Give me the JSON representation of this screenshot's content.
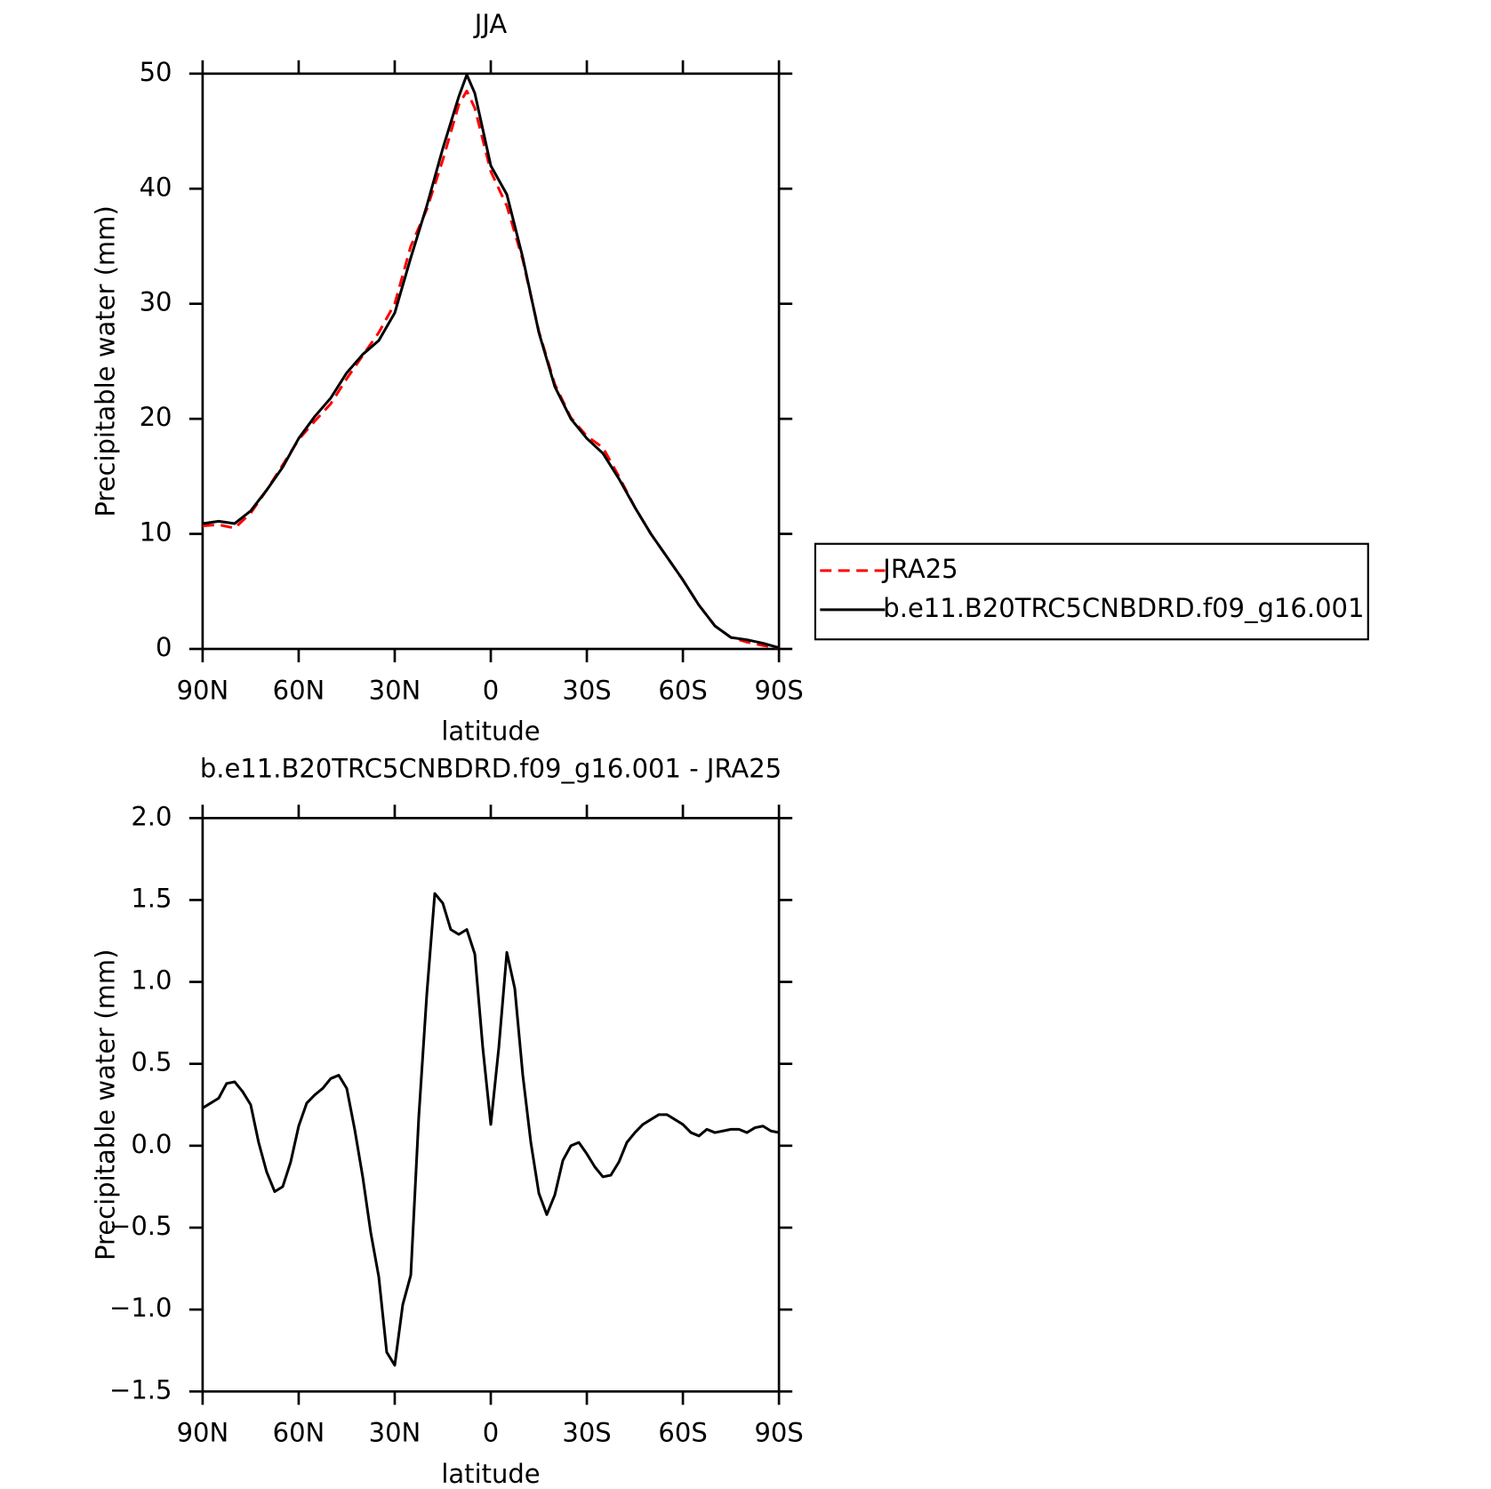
{
  "chart_data": [
    {
      "type": "line",
      "title": "JJA",
      "xlabel": "latitude",
      "ylabel": "Precipitable water (mm)",
      "xlim": [
        90,
        -90
      ],
      "xticks": [
        {
          "value": 90,
          "label": "90N"
        },
        {
          "value": 60,
          "label": "60N"
        },
        {
          "value": 30,
          "label": "30N"
        },
        0,
        {
          "value": -30,
          "label": "30S"
        },
        {
          "value": -60,
          "label": "60S"
        },
        {
          "value": -90,
          "label": "90S"
        }
      ],
      "ylim": [
        0,
        50
      ],
      "yticks": [
        0,
        10,
        20,
        30,
        40,
        50
      ],
      "legend": "right",
      "x": [
        90,
        85,
        80,
        75,
        70,
        65,
        60,
        55,
        50,
        45,
        40,
        35,
        30,
        25,
        20,
        15,
        10,
        7.5,
        5,
        0,
        -5,
        -10,
        -15,
        -20,
        -25,
        -30,
        -35,
        -40,
        -45,
        -50,
        -55,
        -60,
        -65,
        -70,
        -75,
        -80,
        -85,
        -90
      ],
      "series": [
        {
          "name": "JRA25",
          "color": "#ff0000",
          "dashed": true,
          "values": [
            10.7,
            10.8,
            10.5,
            11.8,
            13.8,
            16.0,
            18.2,
            19.8,
            21.3,
            23.5,
            25.5,
            27.5,
            30.0,
            35.0,
            38.2,
            42.5,
            47.3,
            48.5,
            47.0,
            41.5,
            38.5,
            33.8,
            27.6,
            23.0,
            20.1,
            18.5,
            17.5,
            15.0,
            12.3,
            10.0,
            8.0,
            6.0,
            3.8,
            2.0,
            1.0,
            0.6,
            0.3,
            0.1
          ]
        },
        {
          "name": "b.e11.B20TRC5CNBDRD.f09_g16.001",
          "color": "#000000",
          "dashed": false,
          "values": [
            10.9,
            11.1,
            10.9,
            12.0,
            13.8,
            15.8,
            18.3,
            20.2,
            21.8,
            24.0,
            25.6,
            26.8,
            29.2,
            34.0,
            38.5,
            43.5,
            48.0,
            49.9,
            48.3,
            42.0,
            39.5,
            34.0,
            27.5,
            22.8,
            20.0,
            18.3,
            17.0,
            14.8,
            12.3,
            10.0,
            8.0,
            6.0,
            3.8,
            2.0,
            1.0,
            0.8,
            0.5,
            0.1
          ]
        }
      ]
    },
    {
      "type": "line",
      "title": "b.e11.B20TRC5CNBDRD.f09_g16.001 - JRA25",
      "xlabel": "latitude",
      "ylabel": "Precipitable water (mm)",
      "xlim": [
        90,
        -90
      ],
      "xticks": [
        {
          "value": 90,
          "label": "90N"
        },
        {
          "value": 60,
          "label": "60N"
        },
        {
          "value": 30,
          "label": "30N"
        },
        0,
        {
          "value": -30,
          "label": "30S"
        },
        {
          "value": -60,
          "label": "60S"
        },
        {
          "value": -90,
          "label": "90S"
        }
      ],
      "ylim": [
        -1.5,
        2.0
      ],
      "yticks": [
        {
          "value": -1.5,
          "label": "−1.5"
        },
        {
          "value": -1.0,
          "label": "−1.0"
        },
        {
          "value": -0.5,
          "label": "−0.5"
        },
        {
          "value": 0,
          "label": "0.0"
        },
        0.5,
        {
          "value": 1.0,
          "label": "1.0"
        },
        1.5,
        {
          "value": 2.0,
          "label": "2.0"
        }
      ],
      "x": [
        90,
        87.5,
        85,
        82.5,
        80,
        77.5,
        75,
        72.5,
        70,
        67.5,
        65,
        62.5,
        60,
        57.5,
        55,
        52.5,
        50,
        47.5,
        45,
        42.5,
        40,
        37.5,
        35,
        32.5,
        30,
        27.5,
        25,
        22.5,
        20,
        17.5,
        15,
        12.5,
        10,
        7.5,
        5,
        2.5,
        0,
        -2.5,
        -5,
        -7.5,
        -10,
        -12.5,
        -15,
        -17.5,
        -20,
        -22.5,
        -25,
        -27.5,
        -30,
        -32.5,
        -35,
        -37.5,
        -40,
        -42.5,
        -45,
        -47.5,
        -50,
        -52.5,
        -55,
        -57.5,
        -60,
        -62.5,
        -65,
        -67.5,
        -70,
        -72.5,
        -75,
        -77.5,
        -80,
        -82.5,
        -85,
        -87.5,
        -90
      ],
      "series": [
        {
          "color": "#000000",
          "dashed": false,
          "values": [
            0.23,
            0.26,
            0.29,
            0.38,
            0.39,
            0.33,
            0.25,
            0.02,
            -0.16,
            -0.28,
            -0.25,
            -0.1,
            0.12,
            0.26,
            0.31,
            0.35,
            0.41,
            0.43,
            0.35,
            0.1,
            -0.19,
            -0.53,
            -0.8,
            -1.26,
            -1.34,
            -0.97,
            -0.79,
            0.17,
            0.92,
            1.54,
            1.48,
            1.32,
            1.29,
            1.32,
            1.17,
            0.6,
            0.13,
            0.6,
            1.18,
            0.96,
            0.43,
            0.02,
            -0.29,
            -0.42,
            -0.3,
            -0.09,
            0,
            0.02,
            -0.05,
            -0.13,
            -0.19,
            -0.18,
            -0.1,
            0.02,
            0.08,
            0.13,
            0.16,
            0.19,
            0.19,
            0.16,
            0.13,
            0.08,
            0.06,
            0.1,
            0.08,
            0.09,
            0.1,
            0.1,
            0.08,
            0.11,
            0.12,
            0.09,
            0.08
          ]
        }
      ]
    }
  ]
}
